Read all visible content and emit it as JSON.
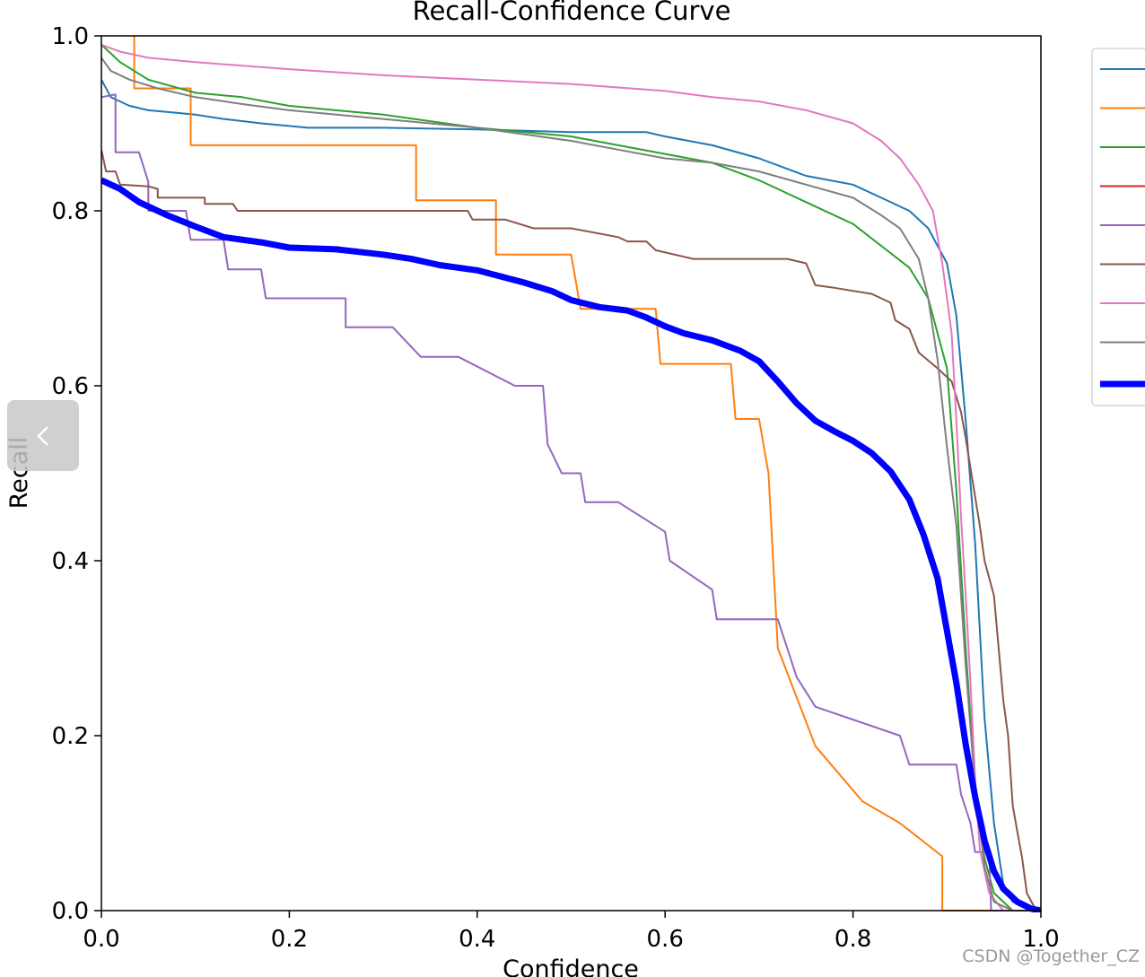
{
  "chart_data": {
    "type": "line",
    "title": "Recall-Confidence Curve",
    "xlabel": "Confidence",
    "ylabel": "Recall",
    "xlim": [
      0,
      1
    ],
    "ylim": [
      0,
      1
    ],
    "xticks": [
      "0.0",
      "0.2",
      "0.4",
      "0.6",
      "0.8",
      "1.0"
    ],
    "yticks": [
      "0.0",
      "0.2",
      "0.4",
      "0.6",
      "0.8",
      "1.0"
    ],
    "grid": false,
    "legend_position": "upper-right-outside",
    "series": [
      {
        "color": "#1f77b4",
        "width": 2,
        "points": [
          [
            0,
            0.95
          ],
          [
            0.01,
            0.93
          ],
          [
            0.03,
            0.92
          ],
          [
            0.05,
            0.915
          ],
          [
            0.08,
            0.912
          ],
          [
            0.1,
            0.91
          ],
          [
            0.13,
            0.905
          ],
          [
            0.17,
            0.9
          ],
          [
            0.22,
            0.895
          ],
          [
            0.3,
            0.895
          ],
          [
            0.4,
            0.893
          ],
          [
            0.5,
            0.89
          ],
          [
            0.58,
            0.89
          ],
          [
            0.6,
            0.885
          ],
          [
            0.65,
            0.875
          ],
          [
            0.7,
            0.86
          ],
          [
            0.75,
            0.84
          ],
          [
            0.8,
            0.83
          ],
          [
            0.83,
            0.815
          ],
          [
            0.86,
            0.8
          ],
          [
            0.88,
            0.78
          ],
          [
            0.9,
            0.74
          ],
          [
            0.91,
            0.68
          ],
          [
            0.92,
            0.56
          ],
          [
            0.93,
            0.42
          ],
          [
            0.94,
            0.22
          ],
          [
            0.95,
            0.1
          ],
          [
            0.96,
            0.03
          ],
          [
            0.97,
            0.01
          ],
          [
            1.0,
            0.0
          ]
        ]
      },
      {
        "color": "#ff7f0e",
        "width": 2,
        "points": [
          [
            0.035,
            1.0
          ],
          [
            0.035,
            0.94
          ],
          [
            0.095,
            0.94
          ],
          [
            0.095,
            0.875
          ],
          [
            0.335,
            0.875
          ],
          [
            0.335,
            0.812
          ],
          [
            0.42,
            0.812
          ],
          [
            0.42,
            0.75
          ],
          [
            0.5,
            0.75
          ],
          [
            0.51,
            0.688
          ],
          [
            0.59,
            0.688
          ],
          [
            0.595,
            0.625
          ],
          [
            0.67,
            0.625
          ],
          [
            0.675,
            0.562
          ],
          [
            0.7,
            0.562
          ],
          [
            0.71,
            0.5
          ],
          [
            0.72,
            0.3
          ],
          [
            0.76,
            0.188
          ],
          [
            0.81,
            0.125
          ],
          [
            0.85,
            0.1
          ],
          [
            0.895,
            0.062
          ],
          [
            0.895,
            0.0
          ],
          [
            1.0,
            0.0
          ]
        ]
      },
      {
        "color": "#2ca02c",
        "width": 2,
        "points": [
          [
            0,
            0.99
          ],
          [
            0.02,
            0.97
          ],
          [
            0.05,
            0.95
          ],
          [
            0.1,
            0.935
          ],
          [
            0.15,
            0.93
          ],
          [
            0.2,
            0.92
          ],
          [
            0.3,
            0.91
          ],
          [
            0.4,
            0.895
          ],
          [
            0.45,
            0.89
          ],
          [
            0.5,
            0.885
          ],
          [
            0.55,
            0.875
          ],
          [
            0.6,
            0.865
          ],
          [
            0.65,
            0.855
          ],
          [
            0.7,
            0.835
          ],
          [
            0.75,
            0.81
          ],
          [
            0.8,
            0.785
          ],
          [
            0.83,
            0.76
          ],
          [
            0.86,
            0.735
          ],
          [
            0.88,
            0.7
          ],
          [
            0.9,
            0.62
          ],
          [
            0.91,
            0.48
          ],
          [
            0.92,
            0.3
          ],
          [
            0.93,
            0.14
          ],
          [
            0.94,
            0.06
          ],
          [
            0.95,
            0.02
          ],
          [
            0.97,
            0.0
          ],
          [
            1.0,
            0.0
          ]
        ]
      },
      {
        "color": "#d62728",
        "width": 2,
        "points": []
      },
      {
        "color": "#9467bd",
        "width": 2,
        "points": [
          [
            0,
            0.93
          ],
          [
            0.015,
            0.933
          ],
          [
            0.015,
            0.867
          ],
          [
            0.04,
            0.867
          ],
          [
            0.05,
            0.833
          ],
          [
            0.05,
            0.8
          ],
          [
            0.09,
            0.8
          ],
          [
            0.095,
            0.767
          ],
          [
            0.13,
            0.767
          ],
          [
            0.135,
            0.733
          ],
          [
            0.17,
            0.733
          ],
          [
            0.175,
            0.7
          ],
          [
            0.26,
            0.7
          ],
          [
            0.26,
            0.667
          ],
          [
            0.31,
            0.667
          ],
          [
            0.34,
            0.633
          ],
          [
            0.38,
            0.633
          ],
          [
            0.44,
            0.6
          ],
          [
            0.47,
            0.6
          ],
          [
            0.475,
            0.533
          ],
          [
            0.49,
            0.5
          ],
          [
            0.51,
            0.5
          ],
          [
            0.515,
            0.467
          ],
          [
            0.55,
            0.467
          ],
          [
            0.6,
            0.433
          ],
          [
            0.605,
            0.4
          ],
          [
            0.65,
            0.367
          ],
          [
            0.655,
            0.333
          ],
          [
            0.72,
            0.333
          ],
          [
            0.73,
            0.3
          ],
          [
            0.74,
            0.267
          ],
          [
            0.76,
            0.233
          ],
          [
            0.85,
            0.2
          ],
          [
            0.86,
            0.167
          ],
          [
            0.91,
            0.167
          ],
          [
            0.915,
            0.133
          ],
          [
            0.925,
            0.1
          ],
          [
            0.93,
            0.067
          ],
          [
            0.945,
            0.067
          ],
          [
            0.947,
            0.0
          ],
          [
            1.0,
            0.0
          ]
        ]
      },
      {
        "color": "#8c564b",
        "width": 2,
        "points": [
          [
            0,
            0.87
          ],
          [
            0.005,
            0.845
          ],
          [
            0.015,
            0.845
          ],
          [
            0.02,
            0.83
          ],
          [
            0.05,
            0.828
          ],
          [
            0.06,
            0.825
          ],
          [
            0.06,
            0.815
          ],
          [
            0.09,
            0.815
          ],
          [
            0.11,
            0.815
          ],
          [
            0.11,
            0.808
          ],
          [
            0.14,
            0.808
          ],
          [
            0.145,
            0.8
          ],
          [
            0.2,
            0.8
          ],
          [
            0.3,
            0.8
          ],
          [
            0.38,
            0.8
          ],
          [
            0.39,
            0.8
          ],
          [
            0.395,
            0.79
          ],
          [
            0.43,
            0.79
          ],
          [
            0.46,
            0.78
          ],
          [
            0.5,
            0.78
          ],
          [
            0.54,
            0.772
          ],
          [
            0.55,
            0.77
          ],
          [
            0.56,
            0.765
          ],
          [
            0.58,
            0.765
          ],
          [
            0.59,
            0.755
          ],
          [
            0.63,
            0.745
          ],
          [
            0.65,
            0.745
          ],
          [
            0.73,
            0.745
          ],
          [
            0.75,
            0.74
          ],
          [
            0.76,
            0.715
          ],
          [
            0.78,
            0.712
          ],
          [
            0.82,
            0.705
          ],
          [
            0.84,
            0.695
          ],
          [
            0.845,
            0.675
          ],
          [
            0.86,
            0.665
          ],
          [
            0.87,
            0.638
          ],
          [
            0.89,
            0.62
          ],
          [
            0.905,
            0.605
          ],
          [
            0.915,
            0.57
          ],
          [
            0.92,
            0.54
          ],
          [
            0.935,
            0.44
          ],
          [
            0.94,
            0.4
          ],
          [
            0.95,
            0.36
          ],
          [
            0.96,
            0.24
          ],
          [
            0.965,
            0.2
          ],
          [
            0.97,
            0.12
          ],
          [
            0.975,
            0.09
          ],
          [
            0.98,
            0.06
          ],
          [
            0.985,
            0.02
          ],
          [
            0.995,
            0.0
          ],
          [
            1.0,
            0.0
          ]
        ]
      },
      {
        "color": "#e377c2",
        "width": 2,
        "points": [
          [
            0,
            0.99
          ],
          [
            0.02,
            0.982
          ],
          [
            0.05,
            0.975
          ],
          [
            0.1,
            0.97
          ],
          [
            0.2,
            0.962
          ],
          [
            0.3,
            0.955
          ],
          [
            0.4,
            0.95
          ],
          [
            0.5,
            0.945
          ],
          [
            0.6,
            0.937
          ],
          [
            0.65,
            0.93
          ],
          [
            0.7,
            0.925
          ],
          [
            0.75,
            0.915
          ],
          [
            0.8,
            0.9
          ],
          [
            0.83,
            0.88
          ],
          [
            0.85,
            0.86
          ],
          [
            0.87,
            0.83
          ],
          [
            0.885,
            0.8
          ],
          [
            0.895,
            0.74
          ],
          [
            0.905,
            0.66
          ],
          [
            0.91,
            0.56
          ],
          [
            0.915,
            0.45
          ],
          [
            0.92,
            0.36
          ],
          [
            0.925,
            0.26
          ],
          [
            0.93,
            0.15
          ],
          [
            0.935,
            0.07
          ],
          [
            0.945,
            0.02
          ],
          [
            0.96,
            0.0
          ],
          [
            1.0,
            0.0
          ]
        ]
      },
      {
        "color": "#7f7f7f",
        "width": 2,
        "points": [
          [
            0,
            0.975
          ],
          [
            0.01,
            0.96
          ],
          [
            0.03,
            0.95
          ],
          [
            0.06,
            0.94
          ],
          [
            0.1,
            0.93
          ],
          [
            0.15,
            0.922
          ],
          [
            0.2,
            0.915
          ],
          [
            0.3,
            0.905
          ],
          [
            0.4,
            0.895
          ],
          [
            0.5,
            0.88
          ],
          [
            0.55,
            0.87
          ],
          [
            0.6,
            0.86
          ],
          [
            0.65,
            0.855
          ],
          [
            0.7,
            0.845
          ],
          [
            0.75,
            0.83
          ],
          [
            0.8,
            0.815
          ],
          [
            0.83,
            0.795
          ],
          [
            0.85,
            0.78
          ],
          [
            0.87,
            0.745
          ],
          [
            0.88,
            0.7
          ],
          [
            0.89,
            0.63
          ],
          [
            0.9,
            0.53
          ],
          [
            0.91,
            0.44
          ],
          [
            0.92,
            0.28
          ],
          [
            0.93,
            0.14
          ],
          [
            0.94,
            0.05
          ],
          [
            0.95,
            0.01
          ],
          [
            0.97,
            0.0
          ],
          [
            1.0,
            0.0
          ]
        ]
      },
      {
        "color": "#0000ff",
        "width": 7,
        "points": [
          [
            0,
            0.835
          ],
          [
            0.02,
            0.825
          ],
          [
            0.04,
            0.81
          ],
          [
            0.07,
            0.795
          ],
          [
            0.1,
            0.782
          ],
          [
            0.13,
            0.77
          ],
          [
            0.17,
            0.764
          ],
          [
            0.2,
            0.758
          ],
          [
            0.25,
            0.756
          ],
          [
            0.3,
            0.75
          ],
          [
            0.33,
            0.745
          ],
          [
            0.36,
            0.738
          ],
          [
            0.4,
            0.732
          ],
          [
            0.45,
            0.718
          ],
          [
            0.48,
            0.708
          ],
          [
            0.5,
            0.698
          ],
          [
            0.53,
            0.69
          ],
          [
            0.56,
            0.686
          ],
          [
            0.58,
            0.678
          ],
          [
            0.6,
            0.668
          ],
          [
            0.62,
            0.66
          ],
          [
            0.65,
            0.652
          ],
          [
            0.68,
            0.64
          ],
          [
            0.7,
            0.628
          ],
          [
            0.72,
            0.605
          ],
          [
            0.74,
            0.58
          ],
          [
            0.76,
            0.56
          ],
          [
            0.78,
            0.548
          ],
          [
            0.8,
            0.537
          ],
          [
            0.82,
            0.523
          ],
          [
            0.84,
            0.502
          ],
          [
            0.86,
            0.47
          ],
          [
            0.875,
            0.43
          ],
          [
            0.89,
            0.38
          ],
          [
            0.9,
            0.32
          ],
          [
            0.91,
            0.26
          ],
          [
            0.92,
            0.19
          ],
          [
            0.93,
            0.13
          ],
          [
            0.94,
            0.08
          ],
          [
            0.95,
            0.045
          ],
          [
            0.96,
            0.025
          ],
          [
            0.975,
            0.01
          ],
          [
            0.99,
            0.002
          ],
          [
            1.0,
            0.0
          ]
        ]
      }
    ]
  },
  "watermark": "CSDN @Together_CZ",
  "nav": {
    "back_icon": "chevron-left-icon"
  }
}
